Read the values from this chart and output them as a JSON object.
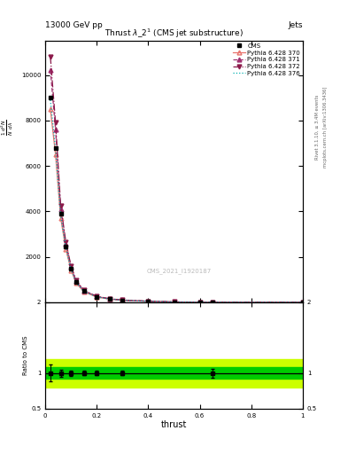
{
  "title_left": "13000 GeV pp",
  "title_right": "Jets",
  "plot_title": "Thrust $\\lambda$_2$^1$ (CMS jet substructure)",
  "xlabel": "thrust",
  "ylabel_main": "$\\frac{1}{N}\\frac{d^2N}{d\\lambda}$",
  "ylabel_ratio": "Ratio to CMS",
  "watermark": "CMS_2021_I1920187",
  "right_label1": "Rivet 3.1.10, ≥ 3.4M events",
  "right_label2": "mcplots.cern.ch [arXiv:1306.3436]",
  "cms_color": "#000000",
  "line_colors": [
    "#e8736c",
    "#a03070",
    "#8b1a4a",
    "#00b0b0"
  ],
  "line_styles": [
    "-",
    "--",
    "-.",
    ":"
  ],
  "legend_labels": [
    "CMS",
    "Pythia 6.428 370",
    "Pythia 6.428 371",
    "Pythia 6.428 372",
    "Pythia 6.428 376"
  ],
  "thrust_x": [
    0.02,
    0.04,
    0.06,
    0.08,
    0.1,
    0.12,
    0.15,
    0.2,
    0.25,
    0.3,
    0.4,
    0.5,
    0.6,
    0.65,
    1.0
  ],
  "cms_y": [
    9000,
    6800,
    3900,
    2450,
    1480,
    900,
    490,
    245,
    148,
    95,
    47,
    19,
    7,
    4,
    2
  ],
  "pythia370_y": [
    8500,
    6500,
    3700,
    2350,
    1420,
    850,
    465,
    233,
    142,
    92,
    46,
    18,
    6.5,
    3.8,
    1.9
  ],
  "pythia371_y": [
    10200,
    7600,
    4100,
    2580,
    1560,
    940,
    515,
    257,
    155,
    100,
    50,
    20,
    7.5,
    4.2,
    2.0
  ],
  "pythia372_y": [
    10800,
    7900,
    4250,
    2660,
    1610,
    970,
    530,
    265,
    160,
    103,
    52,
    21,
    7.8,
    4.4,
    2.1
  ],
  "pythia376_y": [
    8900,
    6700,
    3800,
    2400,
    1450,
    870,
    475,
    238,
    144,
    94,
    47,
    19,
    7.0,
    4.0,
    2.0
  ],
  "yticks_main": [
    2000,
    4000,
    6000,
    8000,
    10000
  ],
  "ylim_main": [
    0,
    11500
  ],
  "ylim_ratio": [
    0.5,
    2.0
  ],
  "xlim": [
    0.0,
    1.0
  ],
  "bg_color": "#ffffff",
  "green_inner": "#00cc00",
  "green_outer": "#ccff00",
  "ratio_err_inner": 0.08,
  "ratio_err_outer": 0.2
}
